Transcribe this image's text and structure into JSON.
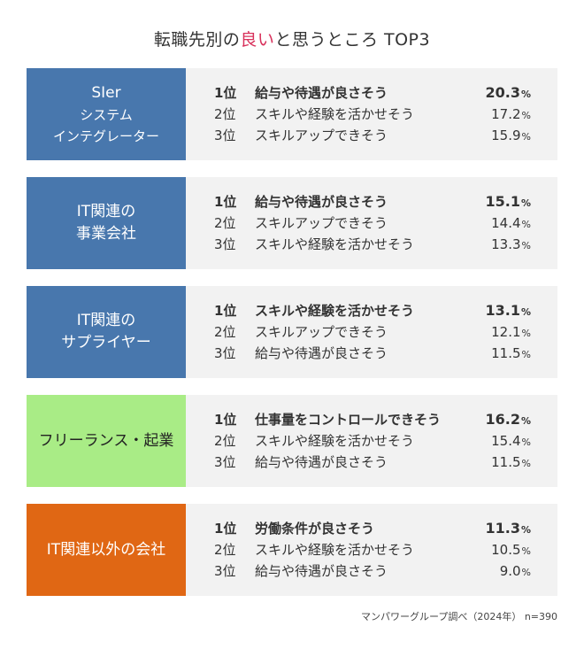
{
  "title": {
    "pre": "転職先別の",
    "highlight": "良い",
    "post": "と思うところ TOP3"
  },
  "colors": {
    "blue": "#4877ad",
    "green": "#a9ec86",
    "orange": "#e06714",
    "highlight": "#d8315b",
    "panel": "#f2f2f2"
  },
  "blocks": [
    {
      "category": {
        "line1": "SIer",
        "line2": "システム",
        "line3": "インテグレーター"
      },
      "rows": [
        {
          "rank": "1位",
          "label": "給与や待遇が良さそう",
          "value": "20.3",
          "unit": "%"
        },
        {
          "rank": "2位",
          "label": "スキルや経験を活かせそう",
          "value": "17.2",
          "unit": "%"
        },
        {
          "rank": "3位",
          "label": "スキルアップできそう",
          "value": "15.9",
          "unit": "%"
        }
      ]
    },
    {
      "category": {
        "line1": "IT関連の",
        "line2": "事業会社"
      },
      "rows": [
        {
          "rank": "1位",
          "label": "給与や待遇が良さそう",
          "value": "15.1",
          "unit": "%"
        },
        {
          "rank": "2位",
          "label": "スキルアップできそう",
          "value": "14.4",
          "unit": "%"
        },
        {
          "rank": "3位",
          "label": "スキルや経験を活かせそう",
          "value": "13.3",
          "unit": "%"
        }
      ]
    },
    {
      "category": {
        "line1": "IT関連の",
        "line2": "サプライヤー"
      },
      "rows": [
        {
          "rank": "1位",
          "label": "スキルや経験を活かせそう",
          "value": "13.1",
          "unit": "%"
        },
        {
          "rank": "2位",
          "label": "スキルアップできそう",
          "value": "12.1",
          "unit": "%"
        },
        {
          "rank": "3位",
          "label": "給与や待遇が良さそう",
          "value": "11.5",
          "unit": "%"
        }
      ]
    },
    {
      "category": {
        "line1": "フリーランス・起業"
      },
      "rows": [
        {
          "rank": "1位",
          "label": "仕事量をコントロールできそう",
          "value": "16.2",
          "unit": "%"
        },
        {
          "rank": "2位",
          "label": "スキルや経験を活かせそう",
          "value": "15.4",
          "unit": "%"
        },
        {
          "rank": "3位",
          "label": "給与や待遇が良さそう",
          "value": "11.5",
          "unit": "%"
        }
      ]
    },
    {
      "category": {
        "line1": "IT関連以外の会社"
      },
      "rows": [
        {
          "rank": "1位",
          "label": "労働条件が良さそう",
          "value": "11.3",
          "unit": "%"
        },
        {
          "rank": "2位",
          "label": "スキルや経験を活かせそう",
          "value": "10.5",
          "unit": "%"
        },
        {
          "rank": "3位",
          "label": "給与や待遇が良さそう",
          "value": "9.0",
          "unit": "%"
        }
      ]
    }
  ],
  "footnote": "マンパワーグループ調べ（2024年） n=390"
}
